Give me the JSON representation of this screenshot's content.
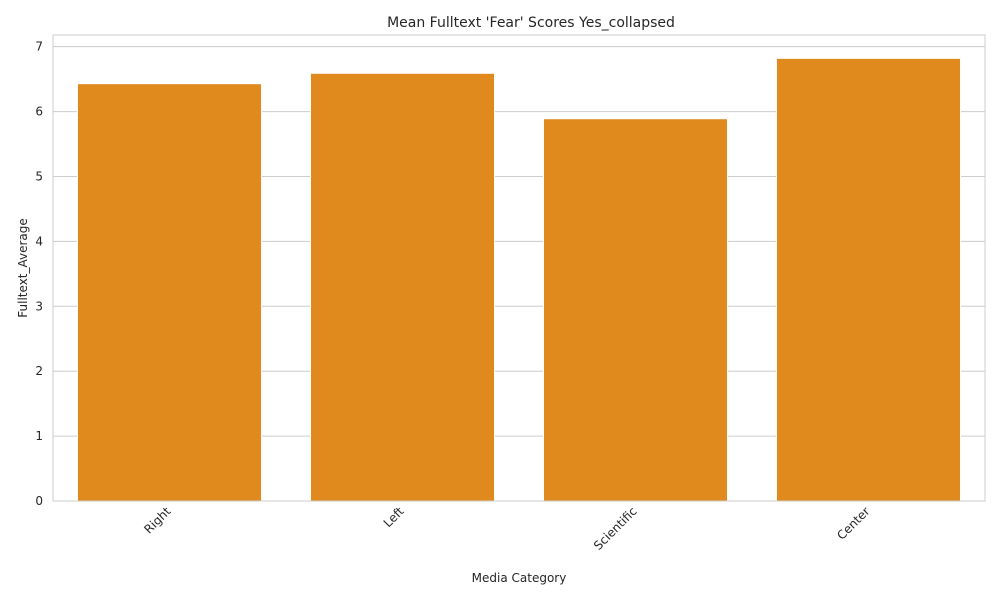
{
  "chart_data": {
    "type": "bar",
    "title": "Mean Fulltext 'Fear' Scores Yes_collapsed",
    "xlabel": "Media Category",
    "ylabel": "Fulltext_Average",
    "categories": [
      "Right",
      "Left",
      "Scientific",
      "Center"
    ],
    "values": [
      6.43,
      6.59,
      5.89,
      6.82
    ],
    "ylim": [
      0,
      7.18
    ],
    "yticks": [
      0,
      1,
      2,
      3,
      4,
      5,
      6,
      7
    ],
    "grid": "horizontal",
    "bar_color": "#e08a1e",
    "grid_color": "#cccccc",
    "x_tick_rotation_deg": 45
  }
}
